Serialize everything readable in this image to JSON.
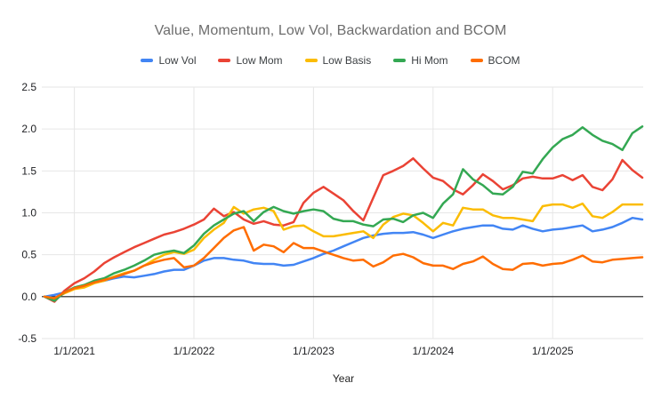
{
  "page": {
    "background": "#ffffff"
  },
  "chart_data": {
    "type": "line",
    "title": "Value, Momentum, Low Vol, Backwardation and BCOM",
    "xlabel": "Year",
    "legend_position": "top",
    "grid": true,
    "ylim": [
      -0.5,
      2.5
    ],
    "y_ticks": [
      -0.5,
      0.0,
      0.5,
      1.0,
      1.5,
      2.0,
      2.5
    ],
    "y_tick_labels": [
      "-0.5",
      "0.0",
      "0.5",
      "1.0",
      "1.5",
      "2.0",
      "2.5"
    ],
    "x_tick_labels": [
      "1/1/2021",
      "1/1/2022",
      "1/1/2023",
      "1/1/2024",
      "1/1/2025"
    ],
    "x_tick_indices": [
      3,
      15,
      27,
      39,
      51
    ],
    "colors": {
      "gridline": "#e6e6e6",
      "zero_line": "#1a1a1a",
      "tick_label": "#202124",
      "title": "#6d6d6d",
      "legend_text": "#3c4043",
      "axis_title": "#222222"
    },
    "x": [
      "10/1/2020",
      "11/1/2020",
      "12/1/2020",
      "1/1/2021",
      "2/1/2021",
      "3/1/2021",
      "4/1/2021",
      "5/1/2021",
      "6/1/2021",
      "7/1/2021",
      "8/1/2021",
      "9/1/2021",
      "10/1/2021",
      "11/1/2021",
      "12/1/2021",
      "1/1/2022",
      "2/1/2022",
      "3/1/2022",
      "4/1/2022",
      "5/1/2022",
      "6/1/2022",
      "7/1/2022",
      "8/1/2022",
      "9/1/2022",
      "10/1/2022",
      "11/1/2022",
      "12/1/2022",
      "1/1/2023",
      "2/1/2023",
      "3/1/2023",
      "4/1/2023",
      "5/1/2023",
      "6/1/2023",
      "7/1/2023",
      "8/1/2023",
      "9/1/2023",
      "10/1/2023",
      "11/1/2023",
      "12/1/2023",
      "1/1/2024",
      "2/1/2024",
      "3/1/2024",
      "4/1/2024",
      "5/1/2024",
      "6/1/2024",
      "7/1/2024",
      "8/1/2024",
      "9/1/2024",
      "10/1/2024",
      "11/1/2024",
      "12/1/2024",
      "1/1/2025",
      "2/1/2025",
      "3/1/2025",
      "4/1/2025",
      "5/1/2025",
      "6/1/2025",
      "7/1/2025",
      "8/1/2025",
      "9/1/2025",
      "10/1/2025"
    ],
    "series": [
      {
        "name": "Low Vol",
        "color": "#4285F4",
        "values": [
          0.0,
          0.02,
          0.05,
          0.1,
          0.12,
          0.17,
          0.19,
          0.22,
          0.24,
          0.23,
          0.25,
          0.27,
          0.3,
          0.32,
          0.32,
          0.37,
          0.43,
          0.46,
          0.46,
          0.44,
          0.43,
          0.4,
          0.39,
          0.39,
          0.37,
          0.38,
          0.42,
          0.46,
          0.51,
          0.55,
          0.6,
          0.65,
          0.7,
          0.73,
          0.75,
          0.76,
          0.76,
          0.77,
          0.74,
          0.7,
          0.74,
          0.78,
          0.81,
          0.83,
          0.85,
          0.85,
          0.81,
          0.8,
          0.85,
          0.81,
          0.78,
          0.8,
          0.81,
          0.83,
          0.85,
          0.78,
          0.8,
          0.83,
          0.88,
          0.94,
          0.92
        ]
      },
      {
        "name": "Low Mom",
        "color": "#EA4335",
        "values": [
          0.0,
          -0.06,
          0.07,
          0.16,
          0.22,
          0.3,
          0.4,
          0.47,
          0.53,
          0.59,
          0.64,
          0.69,
          0.74,
          0.77,
          0.81,
          0.86,
          0.92,
          1.05,
          0.96,
          1.01,
          0.92,
          0.87,
          0.9,
          0.86,
          0.85,
          0.89,
          1.12,
          1.24,
          1.31,
          1.23,
          1.15,
          1.02,
          0.91,
          1.18,
          1.45,
          1.5,
          1.56,
          1.65,
          1.53,
          1.42,
          1.38,
          1.28,
          1.22,
          1.33,
          1.46,
          1.38,
          1.28,
          1.33,
          1.41,
          1.43,
          1.41,
          1.41,
          1.45,
          1.39,
          1.45,
          1.31,
          1.27,
          1.4,
          1.63,
          1.51,
          1.42
        ]
      },
      {
        "name": "Low Basis",
        "color": "#FBBC04",
        "values": [
          0.0,
          -0.02,
          0.04,
          0.09,
          0.11,
          0.16,
          0.19,
          0.24,
          0.28,
          0.31,
          0.37,
          0.44,
          0.5,
          0.53,
          0.51,
          0.56,
          0.7,
          0.8,
          0.88,
          1.07,
          0.99,
          1.04,
          1.06,
          1.02,
          0.8,
          0.84,
          0.85,
          0.78,
          0.72,
          0.72,
          0.74,
          0.76,
          0.78,
          0.7,
          0.86,
          0.95,
          0.99,
          0.97,
          0.88,
          0.78,
          0.88,
          0.85,
          1.06,
          1.04,
          1.04,
          0.97,
          0.94,
          0.94,
          0.92,
          0.9,
          1.08,
          1.1,
          1.1,
          1.06,
          1.11,
          0.96,
          0.94,
          1.01,
          1.1,
          1.1,
          1.1
        ]
      },
      {
        "name": "Hi Mom",
        "color": "#34A853",
        "values": [
          0.0,
          -0.05,
          0.05,
          0.11,
          0.14,
          0.19,
          0.22,
          0.28,
          0.32,
          0.37,
          0.43,
          0.5,
          0.53,
          0.55,
          0.52,
          0.61,
          0.75,
          0.85,
          0.92,
          0.99,
          1.02,
          0.9,
          1.01,
          1.07,
          1.02,
          0.99,
          1.02,
          1.04,
          1.02,
          0.93,
          0.9,
          0.9,
          0.86,
          0.84,
          0.92,
          0.93,
          0.89,
          0.97,
          1.0,
          0.94,
          1.11,
          1.22,
          1.52,
          1.4,
          1.33,
          1.23,
          1.22,
          1.31,
          1.49,
          1.47,
          1.64,
          1.78,
          1.88,
          1.93,
          2.02,
          1.93,
          1.86,
          1.82,
          1.75,
          1.95,
          2.03
        ]
      },
      {
        "name": "BCOM",
        "color": "#FF6D01",
        "values": [
          0.0,
          -0.02,
          0.05,
          0.1,
          0.13,
          0.17,
          0.2,
          0.23,
          0.27,
          0.31,
          0.37,
          0.41,
          0.44,
          0.46,
          0.35,
          0.37,
          0.46,
          0.58,
          0.7,
          0.79,
          0.83,
          0.55,
          0.62,
          0.6,
          0.53,
          0.64,
          0.58,
          0.58,
          0.54,
          0.5,
          0.46,
          0.43,
          0.44,
          0.36,
          0.41,
          0.49,
          0.51,
          0.47,
          0.4,
          0.37,
          0.37,
          0.33,
          0.39,
          0.42,
          0.48,
          0.39,
          0.33,
          0.32,
          0.39,
          0.4,
          0.37,
          0.39,
          0.4,
          0.44,
          0.49,
          0.42,
          0.41,
          0.44,
          0.45,
          0.46,
          0.47
        ]
      }
    ]
  }
}
